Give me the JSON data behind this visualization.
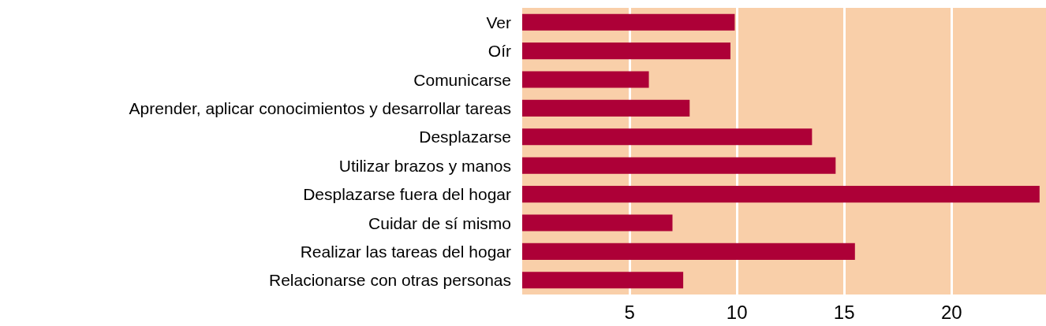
{
  "chart_data": {
    "type": "bar",
    "orientation": "horizontal",
    "categories": [
      "Ver",
      "Oír",
      "Comunicarse",
      "Aprender, aplicar conocimientos y desarrollar tareas",
      "Desplazarse",
      "Utilizar brazos y manos",
      "Desplazarse fuera del hogar",
      "Cuidar de sí mismo",
      "Realizar las tareas del hogar",
      "Relacionarse con otras personas"
    ],
    "values": [
      9.9,
      9.7,
      5.9,
      7.8,
      13.5,
      14.6,
      24.1,
      7.0,
      15.5,
      7.5
    ],
    "color": "#ad0037",
    "xlim": [
      0,
      24.4
    ],
    "xticks": [
      5,
      10,
      15,
      20
    ],
    "grid": "x"
  }
}
